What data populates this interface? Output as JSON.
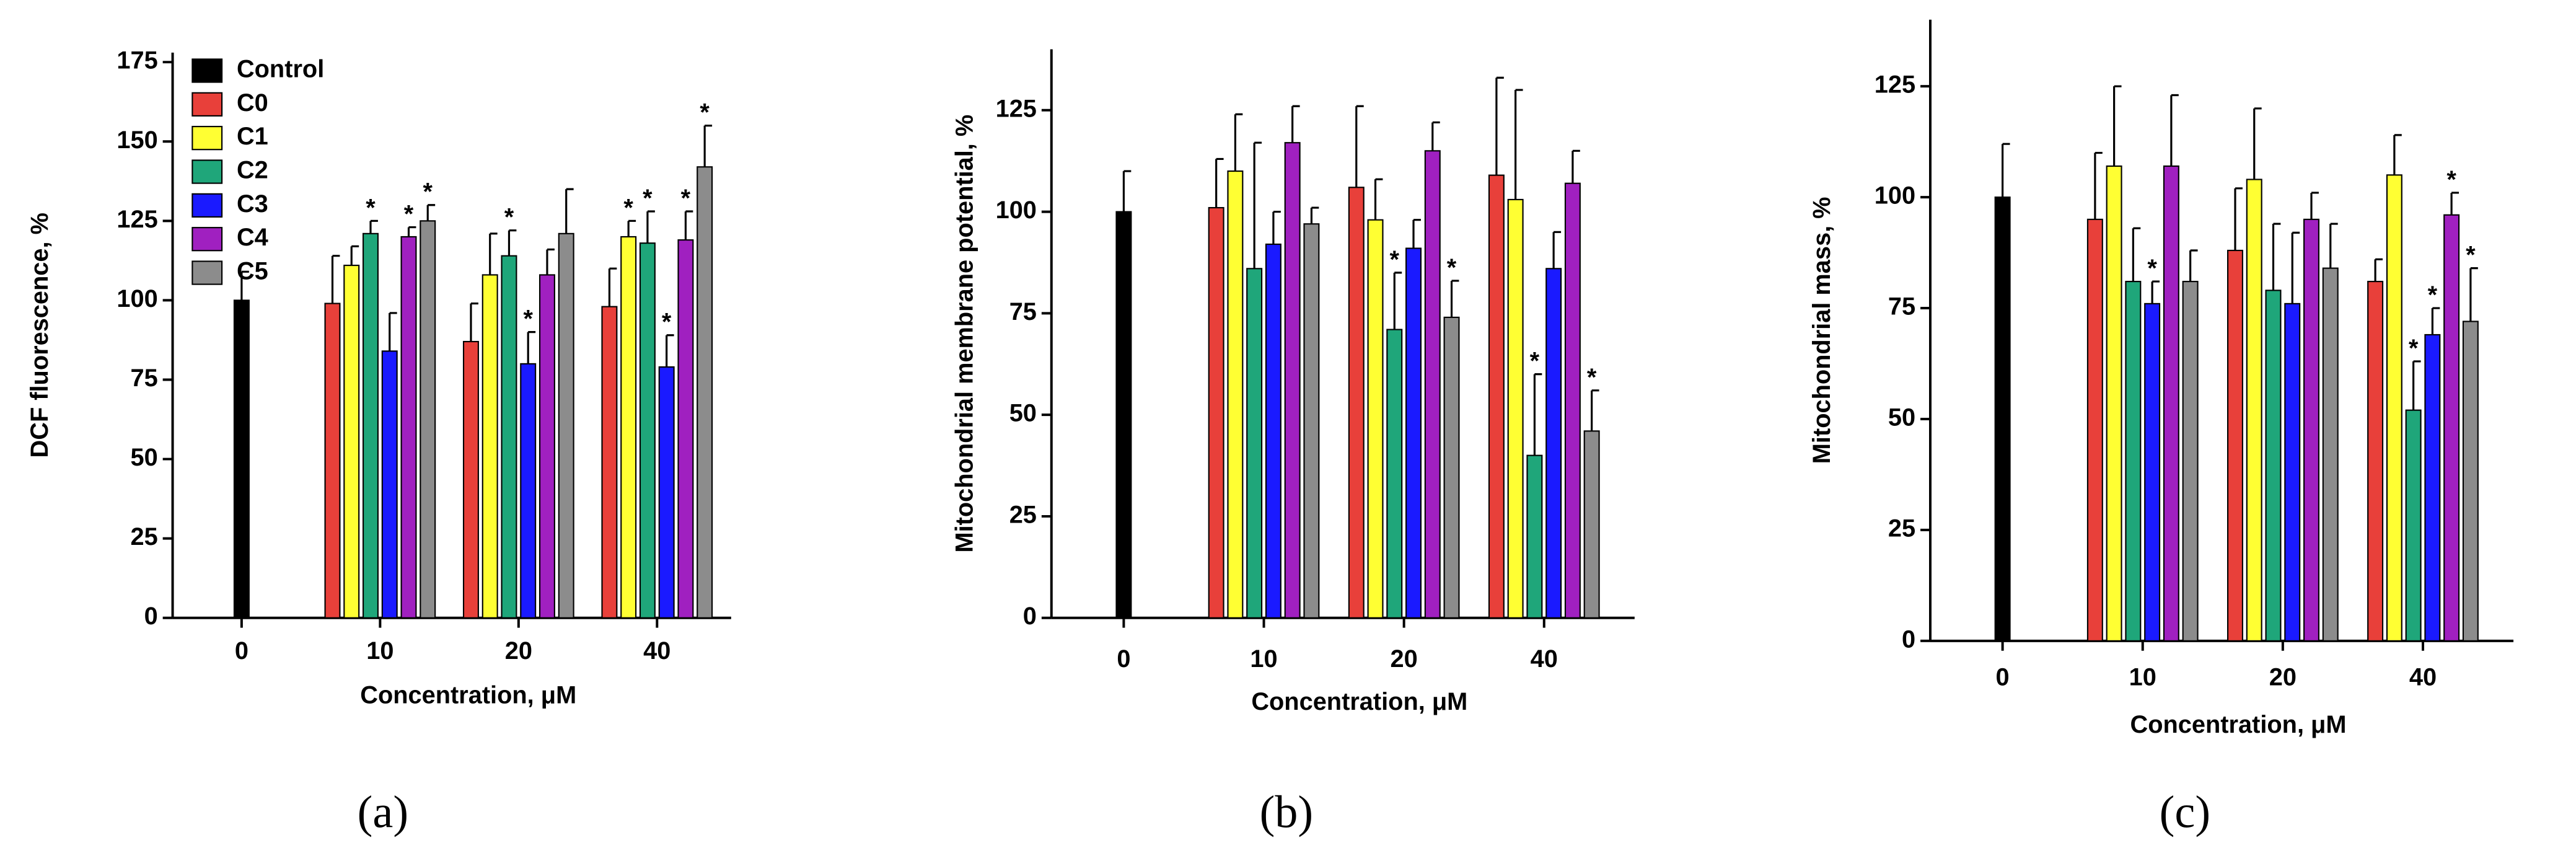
{
  "chart_data": [
    {
      "type": "bar",
      "label": "(a)",
      "ylabel": "DCF fluorescence, %",
      "xlabel": "Concentration, μM",
      "categories": [
        "0",
        "10",
        "20",
        "40"
      ],
      "ylim": [
        0,
        178
      ],
      "yticks": [
        0,
        25,
        50,
        75,
        100,
        125,
        150,
        175
      ],
      "legend": "upper left",
      "series": [
        {
          "name": "Control",
          "color": "#000000",
          "values": [
            100,
            null,
            null,
            null
          ],
          "errors": [
            9,
            null,
            null,
            null
          ],
          "annotations": [
            null,
            null,
            null,
            null
          ]
        },
        {
          "name": "C0",
          "color": "#e8403a",
          "values": [
            null,
            99,
            87,
            98
          ],
          "errors": [
            null,
            15,
            12,
            12
          ],
          "annotations": [
            null,
            null,
            null,
            null
          ]
        },
        {
          "name": "C1",
          "color": "#ffff33",
          "values": [
            null,
            111,
            108,
            120
          ],
          "errors": [
            null,
            6,
            13,
            5
          ],
          "annotations": [
            null,
            null,
            null,
            "*"
          ]
        },
        {
          "name": "C2",
          "color": "#1fa67a",
          "values": [
            null,
            121,
            114,
            118
          ],
          "errors": [
            null,
            4,
            8,
            10
          ],
          "annotations": [
            null,
            "*",
            "*",
            "*"
          ]
        },
        {
          "name": "C3",
          "color": "#1a1aff",
          "values": [
            null,
            84,
            80,
            79
          ],
          "errors": [
            null,
            12,
            10,
            10
          ],
          "annotations": [
            null,
            null,
            "*",
            "*"
          ]
        },
        {
          "name": "C4",
          "color": "#a020c0",
          "values": [
            null,
            120,
            108,
            119
          ],
          "errors": [
            null,
            3,
            8,
            9
          ],
          "annotations": [
            null,
            "*",
            null,
            "*"
          ]
        },
        {
          "name": "C5",
          "color": "#8c8c8c",
          "values": [
            null,
            125,
            121,
            142
          ],
          "errors": [
            null,
            5,
            14,
            13
          ],
          "annotations": [
            null,
            "*",
            null,
            "*"
          ]
        }
      ]
    },
    {
      "type": "bar",
      "label": "(b)",
      "ylabel": "Mitochondrial membrane potential, %",
      "xlabel": "Concentration, μM",
      "categories": [
        "0",
        "10",
        "20",
        "40"
      ],
      "ylim": [
        0,
        140
      ],
      "yticks": [
        0,
        25,
        50,
        75,
        100,
        125
      ],
      "series": [
        {
          "name": "Control",
          "color": "#000000",
          "values": [
            100,
            null,
            null,
            null
          ],
          "errors": [
            10,
            null,
            null,
            null
          ],
          "annotations": [
            null,
            null,
            null,
            null
          ]
        },
        {
          "name": "C0",
          "color": "#e8403a",
          "values": [
            null,
            101,
            106,
            109
          ],
          "errors": [
            null,
            12,
            20,
            24
          ],
          "annotations": [
            null,
            null,
            null,
            null
          ]
        },
        {
          "name": "C1",
          "color": "#ffff33",
          "values": [
            null,
            110,
            98,
            103
          ],
          "errors": [
            null,
            14,
            10,
            27
          ],
          "annotations": [
            null,
            null,
            null,
            null
          ]
        },
        {
          "name": "C2",
          "color": "#1fa67a",
          "values": [
            null,
            86,
            71,
            40
          ],
          "errors": [
            null,
            31,
            14,
            20
          ],
          "annotations": [
            null,
            null,
            "*",
            "*"
          ]
        },
        {
          "name": "C3",
          "color": "#1a1aff",
          "values": [
            null,
            92,
            91,
            86
          ],
          "errors": [
            null,
            8,
            7,
            9
          ],
          "annotations": [
            null,
            null,
            null,
            null
          ]
        },
        {
          "name": "C4",
          "color": "#a020c0",
          "values": [
            null,
            117,
            115,
            107
          ],
          "errors": [
            null,
            9,
            7,
            8
          ],
          "annotations": [
            null,
            null,
            null,
            null
          ]
        },
        {
          "name": "C5",
          "color": "#8c8c8c",
          "values": [
            null,
            97,
            74,
            46
          ],
          "errors": [
            null,
            4,
            9,
            10
          ],
          "annotations": [
            null,
            null,
            "*",
            "*"
          ]
        }
      ]
    },
    {
      "type": "bar",
      "label": "(c)",
      "ylabel": "Mitochondrial mass, %",
      "xlabel": "Concentration, μM",
      "categories": [
        "0",
        "10",
        "20",
        "40"
      ],
      "ylim": [
        0,
        140
      ],
      "yticks": [
        0,
        25,
        50,
        75,
        100,
        125
      ],
      "series": [
        {
          "name": "Control",
          "color": "#000000",
          "values": [
            100,
            null,
            null,
            null
          ],
          "errors": [
            12,
            null,
            null,
            null
          ],
          "annotations": [
            null,
            null,
            null,
            null
          ]
        },
        {
          "name": "C0",
          "color": "#e8403a",
          "values": [
            null,
            95,
            88,
            81
          ],
          "errors": [
            null,
            15,
            14,
            5
          ],
          "annotations": [
            null,
            null,
            null,
            null
          ]
        },
        {
          "name": "C1",
          "color": "#ffff33",
          "values": [
            null,
            107,
            104,
            105
          ],
          "errors": [
            null,
            18,
            16,
            9
          ],
          "annotations": [
            null,
            null,
            null,
            null
          ]
        },
        {
          "name": "C2",
          "color": "#1fa67a",
          "values": [
            null,
            81,
            79,
            52
          ],
          "errors": [
            null,
            12,
            15,
            11
          ],
          "annotations": [
            null,
            null,
            null,
            "*"
          ]
        },
        {
          "name": "C3",
          "color": "#1a1aff",
          "values": [
            null,
            76,
            76,
            69
          ],
          "errors": [
            null,
            5,
            16,
            6
          ],
          "annotations": [
            null,
            "*",
            null,
            "*"
          ]
        },
        {
          "name": "C4",
          "color": "#a020c0",
          "values": [
            null,
            107,
            95,
            96
          ],
          "errors": [
            null,
            16,
            6,
            5
          ],
          "annotations": [
            null,
            null,
            null,
            "*"
          ]
        },
        {
          "name": "C5",
          "color": "#8c8c8c",
          "values": [
            null,
            81,
            84,
            72
          ],
          "errors": [
            null,
            7,
            10,
            12
          ],
          "annotations": [
            null,
            null,
            null,
            "*"
          ]
        }
      ]
    }
  ]
}
